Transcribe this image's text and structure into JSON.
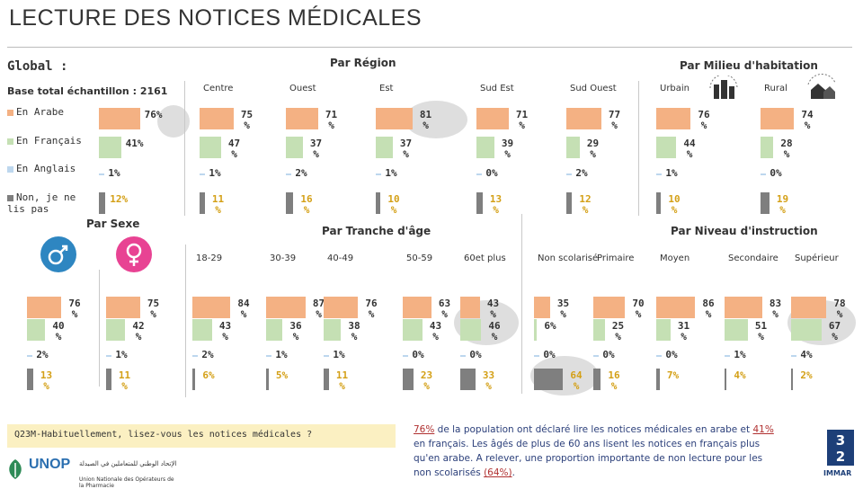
{
  "title": "LECTURE DES NOTICES MÉDICALES",
  "global": {
    "label": "Global :",
    "base": "Base total échantillon : 2161"
  },
  "headers": {
    "region": "Par Région",
    "milieu": "Par Milieu d'habitation",
    "sexe": "Par Sexe",
    "age": "Par Tranche d'âge",
    "instruction": "Par Niveau d'instruction"
  },
  "colors": {
    "arabe": "#f4b183",
    "francais": "#c5e0b4",
    "anglais": "#bdd7ee",
    "nsp": "#7f7f7f"
  },
  "chart_data": {
    "type": "bar",
    "series": [
      {
        "name": "En Arabe"
      },
      {
        "name": "En Français"
      },
      {
        "name": "En Anglais"
      },
      {
        "name": "Non, je ne lis pas"
      }
    ],
    "groups": [
      {
        "id": "global",
        "label": "",
        "values": [
          76,
          41,
          1,
          12
        ],
        "labels": [
          "76%",
          "41%",
          "1%",
          "12%"
        ]
      },
      {
        "id": "centre",
        "label": "Centre",
        "values": [
          75,
          47,
          1,
          11
        ],
        "labels": [
          "75 %",
          "47 %",
          "1%",
          "11 %"
        ]
      },
      {
        "id": "ouest",
        "label": "Ouest",
        "values": [
          71,
          37,
          2,
          16
        ],
        "labels": [
          "71 %",
          "37 %",
          "2%",
          "16 %"
        ]
      },
      {
        "id": "est",
        "label": "Est",
        "values": [
          81,
          37,
          1,
          10
        ],
        "labels": [
          "81 %",
          "37 %",
          "1%",
          "10 %"
        ]
      },
      {
        "id": "sudest",
        "label": "Sud Est",
        "values": [
          71,
          39,
          0,
          13
        ],
        "labels": [
          "71 %",
          "39 %",
          "0%",
          "13 %"
        ]
      },
      {
        "id": "sudouest",
        "label": "Sud Ouest",
        "values": [
          77,
          29,
          2,
          12
        ],
        "labels": [
          "77 %",
          "29 %",
          "2%",
          "12 %"
        ]
      },
      {
        "id": "urbain",
        "label": "Urbain",
        "values": [
          76,
          44,
          1,
          10
        ],
        "labels": [
          "76 %",
          "44 %",
          "1%",
          "10 %"
        ]
      },
      {
        "id": "rural",
        "label": "Rural",
        "values": [
          74,
          28,
          0,
          19
        ],
        "labels": [
          "74 %",
          "28 %",
          "0%",
          "19 %"
        ]
      },
      {
        "id": "homme",
        "label": "",
        "values": [
          76,
          40,
          2,
          13
        ],
        "labels": [
          "76 %",
          "40 %",
          "2%",
          "13 %"
        ]
      },
      {
        "id": "femme",
        "label": "",
        "values": [
          75,
          42,
          1,
          11
        ],
        "labels": [
          "75 %",
          "42 %",
          "1%",
          "11 %"
        ]
      },
      {
        "id": "a1829",
        "label": "18-29",
        "values": [
          84,
          43,
          2,
          6
        ],
        "labels": [
          "84 %",
          "43 %",
          "2%",
          "6%"
        ]
      },
      {
        "id": "a3039",
        "label": "30-39",
        "values": [
          87,
          36,
          1,
          5
        ],
        "labels": [
          "87 %",
          "36 %",
          "1%",
          "5%"
        ]
      },
      {
        "id": "a4049",
        "label": "40-49",
        "values": [
          76,
          38,
          1,
          11
        ],
        "labels": [
          "76 %",
          "38 %",
          "1%",
          "11 %"
        ]
      },
      {
        "id": "a5059",
        "label": "50-59",
        "values": [
          63,
          43,
          0,
          23
        ],
        "labels": [
          "63 %",
          "43 %",
          "0%",
          "23 %"
        ]
      },
      {
        "id": "a60",
        "label": "60et plus",
        "values": [
          43,
          46,
          0,
          33
        ],
        "labels": [
          "43 %",
          "46 %",
          "0%",
          "33 %"
        ]
      },
      {
        "id": "nonscol",
        "label": "Non scolarisé",
        "values": [
          35,
          6,
          0,
          64
        ],
        "labels": [
          "35 %",
          "6%",
          "0%",
          "64 %"
        ]
      },
      {
        "id": "primaire",
        "label": "Primaire",
        "values": [
          70,
          25,
          0,
          16
        ],
        "labels": [
          "70 %",
          "25 %",
          "0%",
          "16 %"
        ]
      },
      {
        "id": "moyen",
        "label": "Moyen",
        "values": [
          86,
          31,
          0,
          7
        ],
        "labels": [
          "86 %",
          "31 %",
          "0%",
          "7%"
        ]
      },
      {
        "id": "secondaire",
        "label": "Secondaire",
        "values": [
          83,
          51,
          1,
          4
        ],
        "labels": [
          "83 %",
          "51 %",
          "1%",
          "4%"
        ]
      },
      {
        "id": "superieur",
        "label": "Supérieur",
        "values": [
          78,
          67,
          4,
          2
        ],
        "labels": [
          "78 %",
          "67 %",
          "4%",
          "2%"
        ]
      }
    ]
  },
  "question": "Q23M-Habituellement, lisez-vous les notices médicales ?",
  "note": {
    "p1": "76%",
    "t1": " de la population ont déclaré lire les notices médicales en arabe et ",
    "p2": "41%",
    "t2": " en français. Les âgés de plus de 60 ans lisent les notices en français plus qu'en arabe. A relever, une proportion importante de non lecture pour les non scolarisés ",
    "p3": "(64%)",
    "t3": "."
  },
  "page": {
    "number": "3\n2",
    "brand": "IMMAR"
  },
  "logo": {
    "name": "UNOP",
    "sub_ar": "الإتحاد الوطني للمتعاملين في الصيدلة",
    "sub_fr": "Union Nationale des Opérateurs de la Pharmacie"
  }
}
